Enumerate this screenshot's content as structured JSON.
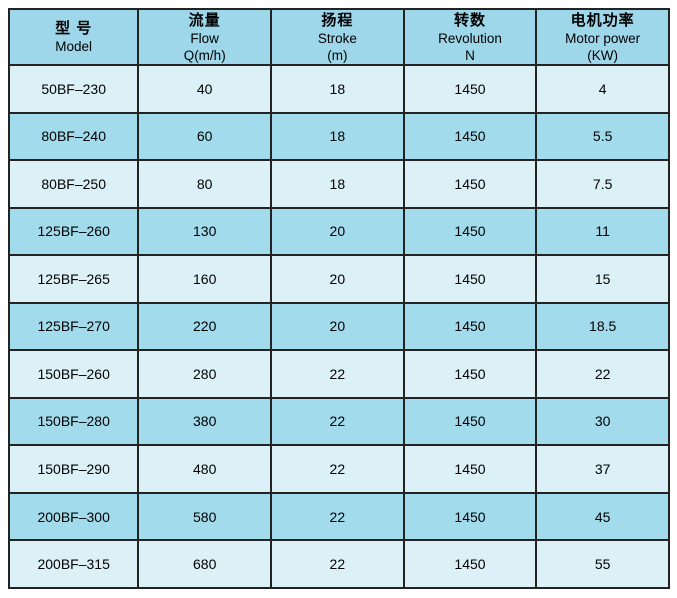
{
  "table": {
    "columns": [
      {
        "zh": "型 号",
        "en": "Model",
        "unit": ""
      },
      {
        "zh": "流量",
        "en": "Flow",
        "unit": "Q(m/h)"
      },
      {
        "zh": "扬程",
        "en": "Stroke",
        "unit": "(m)"
      },
      {
        "zh": "转数",
        "en": "Revolution",
        "unit": "N"
      },
      {
        "zh": "电机功率",
        "en": "Motor power",
        "unit": "(KW)"
      }
    ],
    "rows": [
      {
        "model": "50BF–230",
        "flow": "40",
        "stroke": "18",
        "revolution": "1450",
        "motor_power": "4"
      },
      {
        "model": "80BF–240",
        "flow": "60",
        "stroke": "18",
        "revolution": "1450",
        "motor_power": "5.5"
      },
      {
        "model": "80BF–250",
        "flow": "80",
        "stroke": "18",
        "revolution": "1450",
        "motor_power": "7.5"
      },
      {
        "model": "125BF–260",
        "flow": "130",
        "stroke": "20",
        "revolution": "1450",
        "motor_power": "11"
      },
      {
        "model": "125BF–265",
        "flow": "160",
        "stroke": "20",
        "revolution": "1450",
        "motor_power": "15"
      },
      {
        "model": "125BF–270",
        "flow": "220",
        "stroke": "20",
        "revolution": "1450",
        "motor_power": "18.5"
      },
      {
        "model": "150BF–260",
        "flow": "280",
        "stroke": "22",
        "revolution": "1450",
        "motor_power": "22"
      },
      {
        "model": "150BF–280",
        "flow": "380",
        "stroke": "22",
        "revolution": "1450",
        "motor_power": "30"
      },
      {
        "model": "150BF–290",
        "flow": "480",
        "stroke": "22",
        "revolution": "1450",
        "motor_power": "37"
      },
      {
        "model": "200BF–300",
        "flow": "580",
        "stroke": "22",
        "revolution": "1450",
        "motor_power": "45"
      },
      {
        "model": "200BF–315",
        "flow": "680",
        "stroke": "22",
        "revolution": "1450",
        "motor_power": "55"
      }
    ]
  },
  "colors": {
    "header_bg": "#9dd7e9",
    "row_light": "#dcf0f8",
    "row_dark": "#a2dbec",
    "border": "#232323",
    "text": "#000000",
    "page_bg": "#ffffff"
  }
}
